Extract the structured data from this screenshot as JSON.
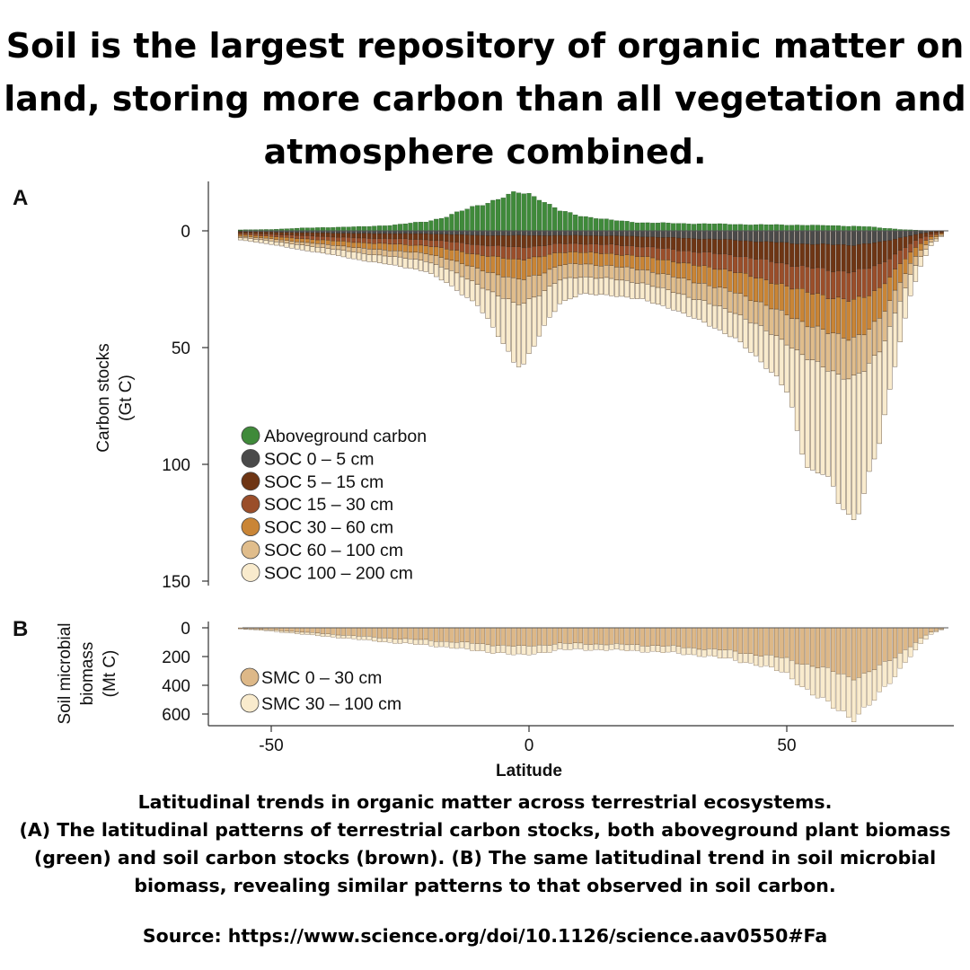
{
  "headline": "Soil is the largest repository of organic matter on land, storing more carbon than all vegetation and atmosphere combined.",
  "caption": {
    "line1": "Latitudinal trends in organic matter across terrestrial ecosystems.",
    "line2": "(A) The latitudinal patterns of terrestrial carbon stocks, both aboveground plant biomass (green) and soil carbon stocks (brown). (B) The same latitudinal trend in soil microbial biomass, revealing similar patterns to that observed in soil carbon.",
    "source": "Source: https://www.science.org/doi/10.1126/science.aav0550#Fa"
  },
  "colors": {
    "aboveground": "#3f8a3a",
    "soc_0_5": "#4a4a4a",
    "soc_5_15": "#6e3514",
    "soc_15_30": "#9a4e2a",
    "soc_30_60": "#c98536",
    "soc_60_100": "#e0bd8c",
    "soc_100_200": "#f9ebcd",
    "smc_0_30": "#ddb888",
    "smc_30_100": "#f9ebcd"
  },
  "chart_data": [
    {
      "type": "bar",
      "panel_label": "A",
      "ylabel": [
        "Carbon stocks",
        "(Gt C)"
      ],
      "xlabel": "",
      "yticks": [
        0,
        50,
        100,
        150
      ],
      "ylim": [
        150,
        -20
      ],
      "xlim": [
        -62,
        83
      ],
      "grid": false,
      "legend_position": "bottom-left",
      "x_nodes": [
        -56,
        -50,
        -44,
        -38,
        -32,
        -26,
        -20,
        -16,
        -10,
        -6,
        -4,
        -3,
        -2,
        -1,
        0,
        2,
        4,
        6,
        10,
        16,
        22,
        28,
        34,
        40,
        44,
        48,
        50,
        51,
        52,
        53,
        54,
        55,
        56,
        57,
        58,
        59,
        60,
        61,
        62,
        63,
        64,
        65,
        66,
        67,
        68,
        70,
        72,
        74,
        76,
        78,
        80
      ],
      "series": [
        {
          "name": "Aboveground carbon",
          "values": [
            0.4,
            0.6,
            1.2,
            1.5,
            1.8,
            2.5,
            4,
            6,
            11,
            13.5,
            15,
            15.8,
            16.3,
            16.3,
            16,
            14,
            11,
            8.5,
            6.5,
            4.5,
            3.5,
            3.2,
            3,
            2.8,
            2.6,
            2.6,
            2.5,
            2.5,
            2.5,
            2.4,
            2.4,
            2.4,
            2.3,
            2.3,
            2.3,
            2.2,
            2.2,
            2.1,
            2,
            2,
            1.9,
            1.8,
            1.7,
            1.5,
            1.3,
            1,
            0.6,
            0.4,
            0.2,
            0.1,
            0
          ]
        },
        {
          "name": "SOC 0 – 5 cm",
          "values": [
            0.4,
            0.6,
            0.8,
            1,
            1.2,
            1.2,
            1.3,
            1.5,
            2,
            2,
            2,
            2,
            2,
            2,
            2,
            2,
            2,
            2,
            2,
            2.2,
            2.5,
            3,
            3.5,
            4,
            4.5,
            5,
            5.2,
            5.3,
            5.4,
            5.5,
            5.6,
            5.7,
            5.8,
            5.9,
            6,
            6,
            6,
            6,
            6,
            6,
            5.8,
            5.6,
            5.4,
            5.2,
            5,
            4,
            3,
            2,
            1.2,
            0.5,
            0.2
          ]
        },
        {
          "name": "SOC 5 – 15 cm",
          "values": [
            0.6,
            0.9,
            1.3,
            1.6,
            2,
            2.2,
            2.5,
            3,
            4,
            4.5,
            4.8,
            5,
            5,
            5,
            4.8,
            4.5,
            4,
            3.5,
            3.5,
            3.8,
            4.2,
            5,
            5.8,
            6.5,
            7.5,
            8.5,
            9,
            9.3,
            9.6,
            9.8,
            10,
            10.2,
            10.4,
            10.6,
            10.8,
            11,
            11.2,
            11.3,
            11.4,
            11.4,
            11.2,
            11,
            10.5,
            10,
            9.5,
            7.5,
            5.5,
            3.5,
            2,
            1,
            0.4
          ]
        },
        {
          "name": "SOC 15 – 30 cm",
          "values": [
            0.6,
            0.9,
            1.3,
            1.6,
            2,
            2.3,
            2.6,
            3.2,
            4.3,
            4.8,
            5,
            5.2,
            5.2,
            5.2,
            5,
            4.7,
            4.2,
            3.7,
            3.6,
            3.9,
            4.3,
            5.1,
            6,
            7,
            8,
            9,
            9.5,
            9.8,
            10,
            10.2,
            10.5,
            10.7,
            11,
            11.2,
            11.5,
            11.7,
            12,
            12.1,
            12.2,
            12.2,
            12,
            11.7,
            11.2,
            10.7,
            10.2,
            8,
            5.8,
            3.7,
            2.2,
            1,
            0.4
          ]
        },
        {
          "name": "SOC 30 – 60 cm",
          "values": [
            0.7,
            1,
            1.5,
            1.9,
            2.4,
            2.8,
            3.3,
            4.2,
            6,
            7.5,
            8,
            8.5,
            8.5,
            8.5,
            8,
            7.5,
            6.5,
            5.5,
            5,
            5.2,
            5.6,
            6.5,
            7.5,
            8.8,
            10,
            11.5,
            12,
            12.5,
            13,
            13.5,
            14,
            14.3,
            14.6,
            14.9,
            15.2,
            15.5,
            15.8,
            16,
            16.2,
            16.2,
            15.8,
            15.4,
            14.8,
            14,
            13.2,
            10.5,
            7.5,
            4.8,
            2.8,
            1.2,
            0.5
          ]
        },
        {
          "name": "SOC 60 – 100 cm",
          "values": [
            0.6,
            0.9,
            1.3,
            1.7,
            2.2,
            2.6,
            3.2,
            4.3,
            6.5,
            9,
            10,
            10.5,
            10.5,
            10,
            9.5,
            8.5,
            7.5,
            6.3,
            5.5,
            5.5,
            5.8,
            6.5,
            7.5,
            8.8,
            10,
            11.5,
            12.2,
            12.8,
            13.5,
            14,
            14.5,
            15,
            15.3,
            15.6,
            15.9,
            16.2,
            16.5,
            16.8,
            17,
            17,
            16.5,
            16,
            15.3,
            14.5,
            13.7,
            11,
            7.8,
            5,
            2.8,
            1.2,
            0.5
          ]
        },
        {
          "name": "SOC 100 – 200 cm",
          "values": [
            1,
            1.5,
            2,
            2.5,
            3,
            3.7,
            4.5,
            6,
            9,
            17,
            22,
            24,
            26,
            27,
            24,
            18,
            13,
            10,
            7.5,
            7,
            7,
            7.5,
            9,
            11,
            14,
            17,
            21,
            27,
            35,
            42,
            47,
            47,
            45,
            44,
            46,
            50,
            55,
            58,
            62,
            62,
            58,
            52,
            46,
            42,
            38,
            28,
            18,
            9,
            4,
            1.5,
            0.5
          ]
        }
      ]
    },
    {
      "type": "bar",
      "panel_label": "B",
      "ylabel": [
        "Soil microbial",
        "biomass",
        "(Mt C)"
      ],
      "xlabel": "Latitude",
      "xticks": [
        -50,
        0,
        50
      ],
      "yticks": [
        0,
        200,
        400,
        600
      ],
      "ylim": [
        680,
        -20
      ],
      "grid": false,
      "legend_position": "bottom-left",
      "x_nodes": [
        -56,
        -50,
        -44,
        -38,
        -32,
        -26,
        -20,
        -16,
        -10,
        -6,
        -4,
        -3,
        -2,
        -1,
        0,
        2,
        4,
        6,
        10,
        16,
        22,
        28,
        34,
        40,
        44,
        48,
        50,
        51,
        52,
        53,
        54,
        55,
        56,
        57,
        58,
        59,
        60,
        61,
        62,
        63,
        64,
        65,
        66,
        67,
        68,
        70,
        72,
        74,
        76,
        78,
        80
      ],
      "series": [
        {
          "name": "SMC 0 – 30 cm",
          "values": [
            5,
            15,
            30,
            45,
            60,
            75,
            85,
            95,
            110,
            120,
            125,
            128,
            130,
            130,
            125,
            120,
            115,
            110,
            110,
            115,
            120,
            130,
            145,
            165,
            185,
            205,
            215,
            225,
            235,
            245,
            255,
            265,
            275,
            285,
            295,
            305,
            315,
            325,
            335,
            340,
            335,
            325,
            310,
            290,
            270,
            225,
            175,
            125,
            75,
            30,
            10
          ]
        },
        {
          "name": "SMC 30 – 100 cm",
          "values": [
            3,
            8,
            15,
            20,
            25,
            30,
            35,
            40,
            50,
            55,
            58,
            60,
            60,
            60,
            58,
            55,
            50,
            45,
            40,
            40,
            42,
            45,
            50,
            60,
            70,
            90,
            105,
            125,
            145,
            165,
            185,
            200,
            210,
            220,
            230,
            240,
            250,
            262,
            280,
            290,
            270,
            250,
            230,
            210,
            190,
            150,
            110,
            70,
            40,
            15,
            5
          ]
        }
      ]
    }
  ]
}
